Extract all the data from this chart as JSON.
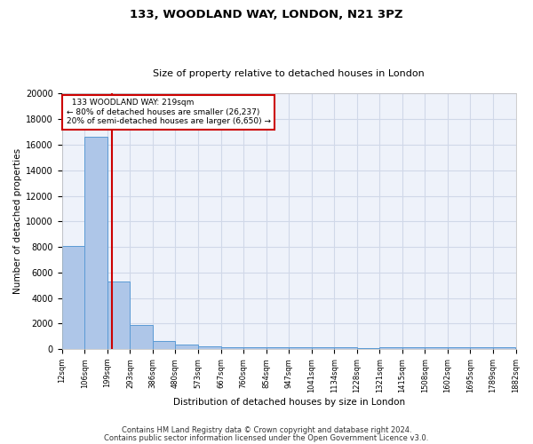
{
  "title1": "133, WOODLAND WAY, LONDON, N21 3PZ",
  "title2": "Size of property relative to detached houses in London",
  "xlabel": "Distribution of detached houses by size in London",
  "ylabel": "Number of detached properties",
  "annotation_title": "133 WOODLAND WAY: 219sqm",
  "annotation_line1": "← 80% of detached houses are smaller (26,237)",
  "annotation_line2": "20% of semi-detached houses are larger (6,650) →",
  "property_size_sqm": 219,
  "footnote1": "Contains HM Land Registry data © Crown copyright and database right 2024.",
  "footnote2": "Contains public sector information licensed under the Open Government Licence v3.0.",
  "bin_edges": [
    12,
    106,
    199,
    293,
    386,
    480,
    573,
    667,
    760,
    854,
    947,
    1041,
    1134,
    1228,
    1321,
    1415,
    1508,
    1602,
    1695,
    1789,
    1882
  ],
  "bin_counts": [
    8100,
    16600,
    5300,
    1900,
    650,
    350,
    225,
    175,
    175,
    175,
    150,
    125,
    125,
    100,
    150,
    125,
    125,
    125,
    125,
    125
  ],
  "bar_color": "#aec6e8",
  "bar_edge_color": "#5b9bd5",
  "vline_color": "#cc0000",
  "vline_x": 219,
  "annotation_box_color": "#cc0000",
  "grid_color": "#d0d8e8",
  "background_color": "#eef2fa",
  "ylim": [
    0,
    20000
  ],
  "yticks": [
    0,
    2000,
    4000,
    6000,
    8000,
    10000,
    12000,
    14000,
    16000,
    18000,
    20000
  ],
  "title1_fontsize": 9.5,
  "title2_fontsize": 8,
  "ylabel_fontsize": 7.5,
  "xlabel_fontsize": 7.5,
  "ytick_fontsize": 7,
  "xtick_fontsize": 6,
  "annotation_fontsize": 6.5,
  "footnote_fontsize": 6
}
